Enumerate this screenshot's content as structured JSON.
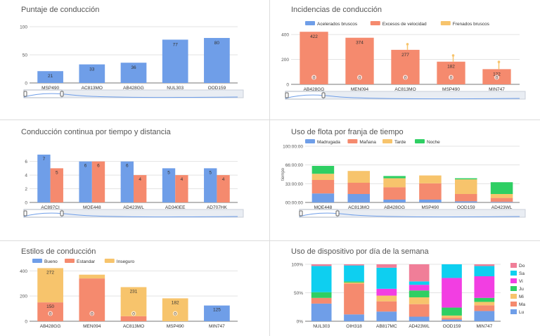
{
  "chart_data": [
    {
      "id": "puntaje",
      "type": "bar",
      "title": "Puntaje de conducción",
      "categories": [
        "MSP490",
        "AC813MO",
        "AB428GG",
        "NUL303",
        "OOD159"
      ],
      "series": [
        {
          "name": "Puntaje",
          "color": "#6f9ee8",
          "values": [
            21,
            33,
            36,
            77,
            80
          ]
        }
      ],
      "yticks": [
        0,
        50,
        100
      ],
      "ylim": [
        0,
        100
      ],
      "value_labels": [
        "21",
        "33",
        "36",
        "77",
        "80"
      ],
      "legend": "none"
    },
    {
      "id": "incidencias",
      "type": "bar",
      "title": "Incidencias de conducción",
      "categories": [
        "AB428GG",
        "MEN094",
        "AC813MO",
        "MSP490",
        "MIN747"
      ],
      "series": [
        {
          "name": "Acelerados bruscos",
          "color": "#6f9ee8",
          "values": [
            0,
            0,
            0,
            0,
            0
          ]
        },
        {
          "name": "Excesos de velocidad",
          "color": "#f58a6e",
          "values": [
            422,
            374,
            277,
            182,
            122
          ]
        },
        {
          "name": "Frenados bruscos",
          "color": "#f7c46c",
          "values": [
            0,
            0,
            45,
            50,
            58
          ]
        }
      ],
      "value_labels": [
        "422",
        "374",
        "277",
        "182",
        "122"
      ],
      "zero_labels": [
        "0",
        "0",
        "0",
        "0",
        "0"
      ],
      "yticks": [
        0,
        200,
        400
      ],
      "ylim": [
        0,
        440
      ],
      "legend": "top"
    },
    {
      "id": "continua",
      "type": "bar",
      "title": "Conducción continua por tiempo y distancia",
      "categories": [
        "AC897CI",
        "MQE448",
        "AD423WL",
        "AD340EE",
        "AD707HK"
      ],
      "series": [
        {
          "name": "Tiempo",
          "color": "#6f9ee8",
          "values": [
            7,
            6,
            6,
            5,
            5
          ]
        },
        {
          "name": "Distancia",
          "color": "#f58a6e",
          "values": [
            5,
            6,
            4,
            4,
            4
          ]
        }
      ],
      "value_labels_a": [
        "7",
        "6",
        "6",
        "5",
        "5"
      ],
      "value_labels_b": [
        "5",
        "6",
        "4",
        "4",
        "4"
      ],
      "yticks": [
        0,
        2,
        4,
        6
      ],
      "ylim": [
        0,
        7.2
      ],
      "legend": "none"
    },
    {
      "id": "flota",
      "type": "bar",
      "stacked": true,
      "title": "Uso de flota por franja de tiempo",
      "ylabel": "tiempo",
      "categories": [
        "MQE448",
        "AC813MO",
        "AB428GG",
        "MSP490",
        "OOD159",
        "AD423WL"
      ],
      "series": [
        {
          "name": "Madrugada",
          "color": "#6f9ee8",
          "values": [
            16,
            15,
            5,
            5,
            2,
            1
          ]
        },
        {
          "name": "Mañana",
          "color": "#f58a6e",
          "values": [
            24,
            20,
            22,
            29,
            13,
            7
          ]
        },
        {
          "name": "Tarde",
          "color": "#f7c46c",
          "values": [
            11,
            21,
            16,
            14,
            26,
            7
          ]
        },
        {
          "name": "Noche",
          "color": "#2ecf63",
          "values": [
            14,
            0,
            4,
            0,
            2,
            21
          ]
        }
      ],
      "yticks": [
        "00:00:00",
        "33:00:00",
        "66:00:00",
        "100:00:00"
      ],
      "ylim": [
        0,
        100
      ],
      "legend": "top"
    },
    {
      "id": "estilos",
      "type": "bar",
      "stacked": true,
      "title": "Estilos de conducción",
      "categories": [
        "AB428GG",
        "MEN094",
        "AC813MO",
        "MSP490",
        "MIN747"
      ],
      "series": [
        {
          "name": "Bueno",
          "color": "#6f9ee8",
          "values": [
            0,
            0,
            0,
            0,
            125
          ]
        },
        {
          "name": "Estandar",
          "color": "#f58a6e",
          "values": [
            150,
            340,
            40,
            0,
            0
          ]
        },
        {
          "name": "Inseguro",
          "color": "#f7c46c",
          "values": [
            272,
            30,
            231,
            182,
            0
          ]
        }
      ],
      "labels_estandar": [
        "150",
        "",
        "",
        "",
        ""
      ],
      "labels_top": [
        "272",
        "",
        "231",
        "182",
        "125"
      ],
      "labels_inner": [
        "0",
        "0",
        "0",
        "0",
        ""
      ],
      "yticks": [
        0,
        200,
        400
      ],
      "ylim": [
        0,
        430
      ],
      "legend": "top"
    },
    {
      "id": "dispositivo",
      "type": "bar",
      "stacked": true,
      "percent": true,
      "title": "Uso de dispositivo por día de la semana",
      "categories": [
        "NUL303",
        "OIH318",
        "AB817MC",
        "AD423WL",
        "OOD159",
        "MIN747"
      ],
      "series": [
        {
          "name": "Lu",
          "color": "#6f9ee8",
          "values": [
            31,
            12,
            17,
            8,
            3,
            18
          ]
        },
        {
          "name": "Ma",
          "color": "#f58a6e",
          "values": [
            10,
            54,
            18,
            22,
            3,
            10
          ]
        },
        {
          "name": "Mi",
          "color": "#f7c46c",
          "values": [
            0,
            2,
            10,
            12,
            4,
            6
          ]
        },
        {
          "name": "Ju",
          "color": "#2ecf63",
          "values": [
            10,
            2,
            0,
            12,
            14,
            7
          ]
        },
        {
          "name": "Vi",
          "color": "#f23ee2",
          "values": [
            0,
            0,
            12,
            10,
            52,
            38
          ]
        },
        {
          "name": "Sa",
          "color": "#0ecff0",
          "values": [
            46,
            28,
            37,
            6,
            24,
            18
          ]
        },
        {
          "name": "Do",
          "color": "#f07e98",
          "values": [
            3,
            2,
            6,
            30,
            0,
            3
          ]
        }
      ],
      "yticks": [
        "0%",
        "50%",
        "100%"
      ],
      "ylim": [
        0,
        100
      ],
      "legend": "right"
    }
  ]
}
